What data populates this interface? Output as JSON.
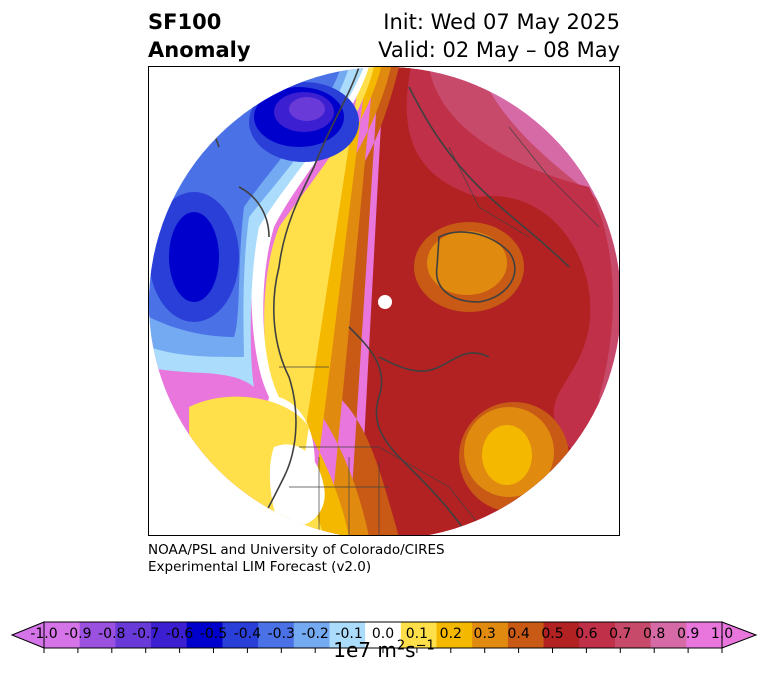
{
  "title": {
    "left_line1": "SF100",
    "left_line2": "Anomaly",
    "right_line1": "Init: Wed 07 May 2025",
    "right_line2": "Valid: 02 May – 08 May"
  },
  "credit": {
    "line1": "NOAA/PSL and University of Colorado/CIRES",
    "line2": "Experimental LIM Forecast (v2.0)"
  },
  "colorbar": {
    "unit_base": "1e7 m",
    "unit_exp1": "2",
    "unit_mid": "s",
    "unit_exp2": "−1",
    "ticks": [
      "-1.0",
      "-0.9",
      "-0.8",
      "-0.7",
      "-0.6",
      "-0.5",
      "-0.4",
      "-0.3",
      "-0.2",
      "-0.1",
      "0.0",
      "0.1",
      "0.2",
      "0.3",
      "0.4",
      "0.5",
      "0.6",
      "0.7",
      "0.8",
      "0.9",
      "1.0"
    ],
    "colors": [
      "#d573e8",
      "#9b51e0",
      "#6a3ad8",
      "#3b1fd0",
      "#0000cd",
      "#2a3fd8",
      "#4a72e6",
      "#74aaf2",
      "#abdcfc",
      "#ffffff",
      "#ffe04a",
      "#f5b800",
      "#e08a10",
      "#c85a15",
      "#b22222",
      "#c03048",
      "#c84a6a",
      "#d66aa6",
      "#e876dc"
    ]
  },
  "map": {
    "projection": "north polar stereographic",
    "contour_colors": {
      "neg_08": "#6a3ad8",
      "neg_07": "#3b1fd0",
      "neg_06": "#0000cd",
      "neg_05": "#2a3fd8",
      "neg_04": "#4a72e6",
      "neg_03": "#74aaf2",
      "neg_02": "#abdcfc",
      "pos_01": "#ffe04a",
      "pos_02": "#f5b800",
      "pos_03": "#e08a10",
      "pos_04": "#c85a15",
      "pos_05": "#b22222",
      "pos_06": "#c03048",
      "pos_07": "#c84a6a",
      "pos_08": "#d66aa6",
      "pos_09": "#e876dc"
    }
  }
}
